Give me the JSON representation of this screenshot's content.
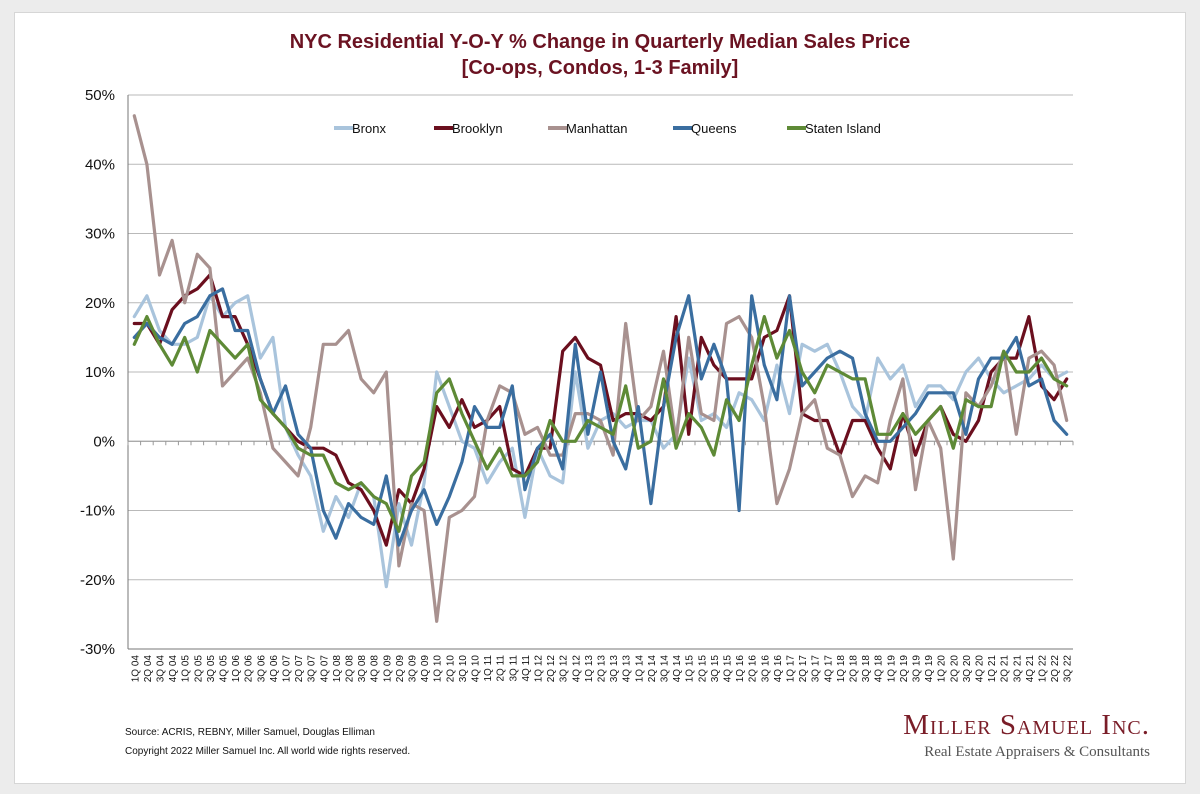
{
  "chart_data": {
    "type": "line",
    "title": "NYC Residential Y-O-Y % Change in Quarterly Median Sales Price",
    "subtitle": "[Co-ops, Condos, 1-3 Family]",
    "ylim": [
      -30,
      50
    ],
    "yticks": [
      "-30%",
      "-20%",
      "-10%",
      "0%",
      "10%",
      "20%",
      "30%",
      "40%",
      "50%"
    ],
    "grid": true,
    "legend_position": "top",
    "categories": [
      "1Q 04",
      "2Q 04",
      "3Q 04",
      "4Q 04",
      "1Q 05",
      "2Q 05",
      "3Q 05",
      "4Q 05",
      "1Q 06",
      "2Q 06",
      "3Q 06",
      "4Q 06",
      "1Q 07",
      "2Q 07",
      "3Q 07",
      "4Q 07",
      "1Q 08",
      "2Q 08",
      "3Q 08",
      "4Q 08",
      "1Q 09",
      "2Q 09",
      "3Q 09",
      "4Q 09",
      "1Q 10",
      "2Q 10",
      "3Q 10",
      "4Q 10",
      "1Q 11",
      "2Q 11",
      "3Q 11",
      "4Q 11",
      "1Q 12",
      "2Q 12",
      "3Q 12",
      "4Q 12",
      "1Q 13",
      "2Q 13",
      "3Q 13",
      "4Q 13",
      "1Q 14",
      "2Q 14",
      "3Q 14",
      "4Q 14",
      "1Q 15",
      "2Q 15",
      "3Q 15",
      "4Q 15",
      "1Q 16",
      "2Q 16",
      "3Q 16",
      "4Q 16",
      "1Q 17",
      "2Q 17",
      "3Q 17",
      "4Q 17",
      "1Q 18",
      "2Q 18",
      "3Q 18",
      "4Q 18",
      "1Q 19",
      "2Q 19",
      "3Q 19",
      "4Q 19",
      "1Q 20",
      "2Q 20",
      "3Q 20",
      "4Q 20",
      "1Q 21",
      "2Q 21",
      "3Q 21",
      "4Q 21",
      "1Q 22",
      "2Q 22",
      "3Q 22"
    ],
    "series": [
      {
        "name": "Bronx",
        "color": "#a9c4dc",
        "values": [
          18,
          21,
          16,
          14,
          14,
          15,
          21,
          18,
          20,
          21,
          12,
          15,
          2,
          -2,
          -5,
          -13,
          -8,
          -11,
          -6,
          -8,
          -21,
          -9,
          -15,
          -6,
          10,
          5,
          0,
          -1,
          -6,
          -3,
          -1,
          -11,
          -1,
          -5,
          -6,
          10,
          -1,
          3,
          4,
          2,
          3,
          3,
          -1,
          1,
          12,
          3,
          4,
          2,
          7,
          6,
          3,
          11,
          4,
          14,
          13,
          14,
          10,
          5,
          3,
          12,
          9,
          11,
          5,
          8,
          8,
          6,
          10,
          12,
          9,
          7,
          8,
          9,
          11,
          9,
          10
        ]
      },
      {
        "name": "Brooklyn",
        "color": "#6b0f1e",
        "values": [
          17,
          17,
          14,
          19,
          21,
          22,
          24,
          18,
          18,
          14,
          9,
          4,
          2,
          0,
          -1,
          -1,
          -2,
          -6,
          -7,
          -10,
          -15,
          -7,
          -9,
          -4,
          5,
          2,
          6,
          2,
          3,
          5,
          -4,
          -5,
          -1,
          -1,
          13,
          15,
          12,
          11,
          3,
          4,
          4,
          3,
          5,
          18,
          1,
          15,
          11,
          9,
          9,
          9,
          15,
          16,
          21,
          4,
          3,
          3,
          -2,
          3,
          3,
          -1,
          -4,
          4,
          -2,
          3,
          5,
          1,
          0,
          3,
          10,
          12,
          12,
          18,
          8,
          6,
          9
        ]
      },
      {
        "name": "Manhattan",
        "color": "#a8918f",
        "values": [
          47,
          40,
          24,
          29,
          20,
          27,
          25,
          8,
          10,
          12,
          7,
          -1,
          -3,
          -5,
          2,
          14,
          14,
          16,
          9,
          7,
          10,
          -18,
          -9,
          -10,
          -26,
          -11,
          -10,
          -8,
          3,
          8,
          7,
          1,
          2,
          -2,
          -2,
          4,
          4,
          3,
          -2,
          17,
          3,
          5,
          13,
          0,
          15,
          4,
          3,
          17,
          18,
          15,
          5,
          -9,
          -4,
          4,
          6,
          -1,
          -2,
          -8,
          -5,
          -6,
          3,
          9,
          -7,
          3,
          -1,
          -17,
          7,
          5,
          8,
          13,
          1,
          12,
          13,
          11,
          3
        ]
      },
      {
        "name": "Queens",
        "color": "#3a6ea0",
        "values": [
          15,
          17,
          15,
          14,
          17,
          18,
          21,
          22,
          16,
          16,
          9,
          4,
          8,
          1,
          -1,
          -10,
          -14,
          -9,
          -11,
          -12,
          -5,
          -15,
          -10,
          -7,
          -12,
          -8,
          -3,
          5,
          2,
          2,
          8,
          -7,
          -1,
          1,
          -4,
          14,
          1,
          10,
          0,
          -4,
          5,
          -9,
          5,
          15,
          21,
          9,
          14,
          9,
          -10,
          21,
          11,
          6,
          21,
          8,
          10,
          12,
          13,
          12,
          4,
          0,
          0,
          2,
          4,
          7,
          7,
          7,
          1,
          9,
          12,
          12,
          15,
          8,
          9,
          3,
          1
        ]
      },
      {
        "name": "Staten Island",
        "color": "#5e8a36",
        "values": [
          14,
          18,
          14,
          11,
          15,
          10,
          16,
          14,
          12,
          14,
          6,
          4,
          2,
          -1,
          -2,
          -2,
          -6,
          -7,
          -6,
          -8,
          -9,
          -13,
          -5,
          -3,
          7,
          9,
          4,
          0,
          -4,
          -1,
          -5,
          -5,
          -3,
          3,
          0,
          0,
          3,
          2,
          1,
          8,
          -1,
          0,
          9,
          -1,
          4,
          2,
          -2,
          6,
          3,
          11,
          18,
          12,
          16,
          10,
          7,
          11,
          10,
          9,
          9,
          1,
          1,
          4,
          1,
          3,
          5,
          -1,
          6,
          5,
          5,
          13,
          10,
          10,
          12,
          9,
          8
        ]
      }
    ],
    "xticks": [
      "1Q 04",
      "2Q 04",
      "3Q 04",
      "4Q 04",
      "1Q 05",
      "2Q 05",
      "3Q 05",
      "4Q 05",
      "1Q 06",
      "2Q 06",
      "3Q 06",
      "4Q 06",
      "1Q 07",
      "2Q 07",
      "3Q 07",
      "4Q 07",
      "1Q 08",
      "2Q 08",
      "3Q 08",
      "4Q 08",
      "1Q 09",
      "2Q 09",
      "3Q 09",
      "4Q 09",
      "1Q 10",
      "2Q 10",
      "3Q 10",
      "4Q 10",
      "1Q 11",
      "2Q 11",
      "3Q 11",
      "4Q 11",
      "1Q 12",
      "2Q 12",
      "3Q 12",
      "4Q 12",
      "1Q 13",
      "2Q 13",
      "3Q 13",
      "4Q 13",
      "1Q 14",
      "2Q 14",
      "3Q 14",
      "4Q 14",
      "1Q 15",
      "2Q 15",
      "3Q 15",
      "4Q 15",
      "1Q 16",
      "2Q 16",
      "3Q 16",
      "4Q 16",
      "1Q 17",
      "2Q 17",
      "3Q 17",
      "4Q 17",
      "1Q 18",
      "2Q 18",
      "3Q 18",
      "4Q 18",
      "1Q 19",
      "2Q 19",
      "3Q 19",
      "4Q 19",
      "1Q 20",
      "2Q 20",
      "3Q 20",
      "4Q 20",
      "1Q 21",
      "2Q 21",
      "3Q 21",
      "4Q 21",
      "1Q 22",
      "2Q 22",
      "3Q 22"
    ]
  },
  "footer": {
    "source": "Source: ACRIS, REBNY, Miller Samuel, Douglas Elliman",
    "copyright": "Copyright 2022 Miller Samuel Inc.  All world wide rights reserved."
  },
  "logo": {
    "name": "Miller Samuel Inc.",
    "tagline": "Real Estate Appraisers & Consultants"
  }
}
